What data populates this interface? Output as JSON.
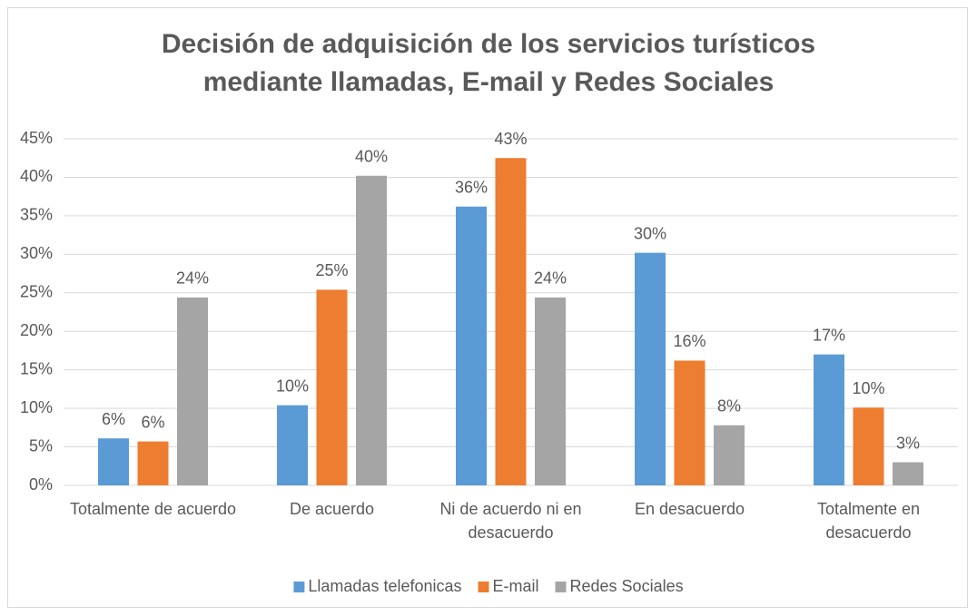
{
  "chart_data": {
    "type": "bar",
    "title": "Decisión de adquisición de los servicios turísticos mediante llamadas, E-mail y Redes Sociales",
    "categories": [
      "Totalmente de acuerdo",
      "De acuerdo",
      "Ni de acuerdo ni en desacuerdo",
      "En desacuerdo",
      "Totalmente en desacuerdo"
    ],
    "series": [
      {
        "name": "Llamadas telefonicas",
        "color": "#5b9bd5",
        "values": [
          6.1,
          10.4,
          36.2,
          30.2,
          17.0
        ],
        "value_labels": [
          "6%",
          "10%",
          "36%",
          "30%",
          "17%"
        ]
      },
      {
        "name": "E-mail",
        "color": "#ed7d31",
        "values": [
          5.7,
          25.4,
          42.5,
          16.2,
          10.1
        ],
        "value_labels": [
          "6%",
          "25%",
          "43%",
          "16%",
          "10%"
        ]
      },
      {
        "name": "Redes Sociales",
        "color": "#a5a5a5",
        "values": [
          24.4,
          40.2,
          24.4,
          7.8,
          3.0
        ],
        "value_labels": [
          "24%",
          "40%",
          "24%",
          "8%",
          "3%"
        ]
      }
    ],
    "ylim": [
      0,
      45
    ],
    "yticks": [
      {
        "value": 0,
        "label": "0%"
      },
      {
        "value": 5,
        "label": "5%"
      },
      {
        "value": 10,
        "label": "10%"
      },
      {
        "value": 15,
        "label": "15%"
      },
      {
        "value": 20,
        "label": "20%"
      },
      {
        "value": 25,
        "label": "25%"
      },
      {
        "value": 30,
        "label": "30%"
      },
      {
        "value": 35,
        "label": "35%"
      },
      {
        "value": 40,
        "label": "40%"
      },
      {
        "value": 45,
        "label": "45%"
      }
    ],
    "grid": true,
    "legend": "bottom"
  }
}
